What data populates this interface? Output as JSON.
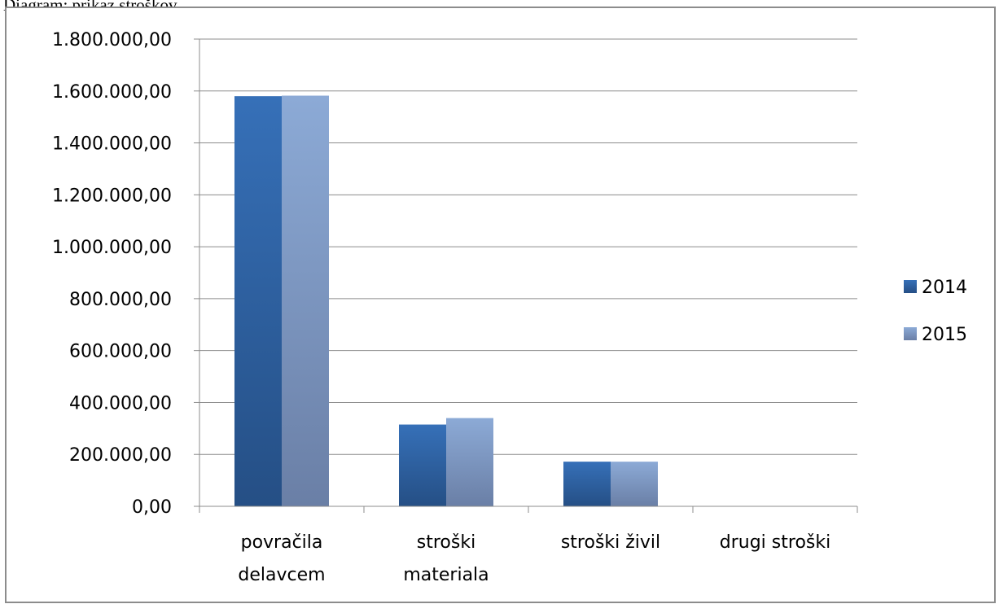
{
  "caption": "Diagram: prikaz stroškov",
  "colors": {
    "series_2014_top": "#3670b8",
    "series_2014_bottom": "#254f85",
    "series_2015_top": "#8caad6",
    "series_2015_bottom": "#6a7fa6",
    "gridline": "#8c8c8c",
    "axis": "#8c8c8c"
  },
  "chart_data": {
    "type": "bar",
    "title": "",
    "xlabel": "",
    "ylabel": "",
    "categories": [
      [
        "povračila",
        "delavcem"
      ],
      [
        "stroški",
        "materiala"
      ],
      [
        "stroški živil"
      ],
      [
        "drugi stroški"
      ]
    ],
    "series": [
      {
        "name": "2014",
        "values": [
          1580000,
          315000,
          172000,
          0
        ]
      },
      {
        "name": "2015",
        "values": [
          1582000,
          340000,
          172000,
          0
        ]
      }
    ],
    "ylim": [
      0,
      1800000
    ],
    "yticks": [
      0,
      200000,
      400000,
      600000,
      800000,
      1000000,
      1200000,
      1400000,
      1600000,
      1800000
    ],
    "ytick_labels": [
      "0,00",
      "200.000,00",
      "400.000,00",
      "600.000,00",
      "800.000,00",
      "1.000.000,00",
      "1.200.000,00",
      "1.400.000,00",
      "1.600.000,00",
      "1.800.000,00"
    ],
    "grid": true,
    "legend_position": "right"
  }
}
